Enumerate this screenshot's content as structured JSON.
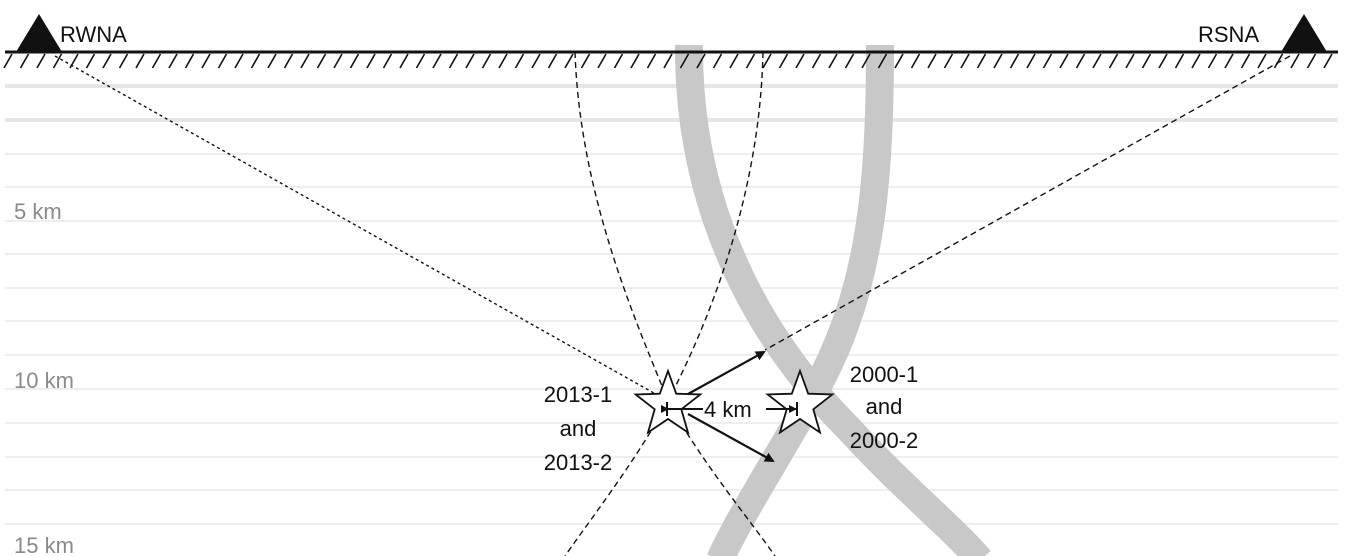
{
  "stations": [
    {
      "name": "RWNA",
      "icon": "triangle-station-icon"
    },
    {
      "name": "RSNA",
      "icon": "triangle-station-icon"
    }
  ],
  "depth_labels": [
    "5 km",
    "10 km",
    "15 km"
  ],
  "events": {
    "older": {
      "line1": "2013-1",
      "line2": "and",
      "line3": "2013-2",
      "icon": "star-icon"
    },
    "newer": {
      "line1": "2000-1",
      "line2": "and",
      "line3": "2000-2",
      "icon": "star-icon"
    }
  },
  "separation_label": "4 km",
  "colors": {
    "ground_line": "#111111",
    "depth_text": "#8a8a8a",
    "grid_line": "#e6e6e6",
    "fault_band": "#c8c8c8",
    "ray": "#111111"
  }
}
